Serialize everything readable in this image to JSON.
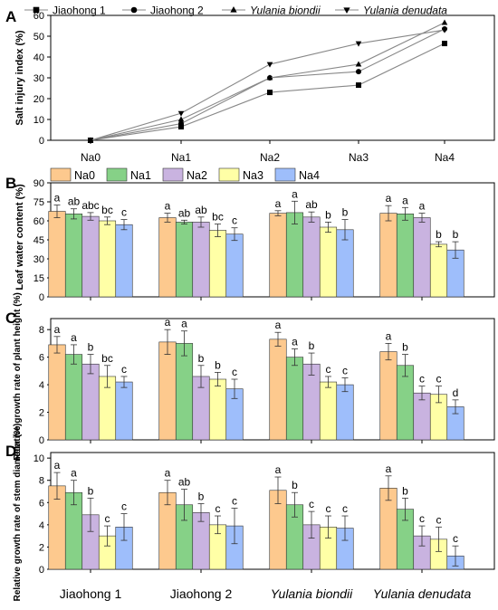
{
  "panel_labels": [
    "A",
    "B",
    "C",
    "D"
  ],
  "species": [
    "Jiaohong 1",
    "Jiaohong 2",
    "Yulania biondii",
    "Yulania denudata"
  ],
  "treatments": [
    "Na0",
    "Na1",
    "Na2",
    "Na3",
    "Na4"
  ],
  "treatment_colors": [
    "#FDC98E",
    "#86D187",
    "#C9B3E0",
    "#FFFFA6",
    "#9EBEFB"
  ],
  "chart_data": [
    {
      "type": "line",
      "panel": "A",
      "ylabel": "Salt injury index (%)",
      "ylim": [
        0,
        60
      ],
      "yticks": [
        0,
        10,
        20,
        30,
        40,
        50,
        60
      ],
      "x": [
        "Na0",
        "Na1",
        "Na2",
        "Na3",
        "Na4"
      ],
      "legend_position": "top",
      "series": [
        {
          "name": "Jiaohong 1",
          "marker": "square",
          "values": [
            0,
            6.5,
            23,
            26.5,
            46.5
          ]
        },
        {
          "name": "Jiaohong 2",
          "marker": "circle",
          "values": [
            0,
            8,
            30,
            33,
            53.5
          ]
        },
        {
          "name": "Yulania biondii",
          "marker": "triangle-up",
          "values": [
            0,
            10,
            30,
            36.5,
            56.5
          ]
        },
        {
          "name": "Yulania denudata",
          "marker": "triangle-down",
          "values": [
            0,
            13,
            36.5,
            46.5,
            53
          ]
        }
      ]
    },
    {
      "type": "bar",
      "panel": "B",
      "ylabel": "Leaf water content (%)",
      "ylim": [
        0,
        90
      ],
      "yticks": [
        0,
        15,
        30,
        45,
        60,
        75,
        90
      ],
      "legend_position": "top",
      "categories": [
        "Jiaohong 1",
        "Jiaohong 2",
        "Yulania biondii",
        "Yulania denudata"
      ],
      "series": [
        {
          "name": "Na0",
          "values": [
            67.5,
            62.5,
            66,
            66
          ],
          "errors": [
            5,
            3.5,
            2,
            6
          ],
          "letters": [
            "a",
            "a",
            "a",
            "a"
          ]
        },
        {
          "name": "Na1",
          "values": [
            65.5,
            59,
            66.5,
            65.5
          ],
          "errors": [
            4,
            1.5,
            9,
            5
          ],
          "letters": [
            "ab",
            "ab",
            "a",
            "a"
          ]
        },
        {
          "name": "Na2",
          "values": [
            63.5,
            59,
            63,
            62.5
          ],
          "errors": [
            3,
            4,
            4,
            3.5
          ],
          "letters": [
            "abc",
            "ab",
            "ab",
            "a"
          ]
        },
        {
          "name": "Na3",
          "values": [
            60,
            52.5,
            55,
            41.5
          ],
          "errors": [
            3,
            5,
            4,
            2
          ],
          "letters": [
            "bc",
            "bc",
            "b",
            "b"
          ]
        },
        {
          "name": "Na4",
          "values": [
            57,
            49.5,
            53,
            37
          ],
          "errors": [
            4,
            5,
            8,
            6.5
          ],
          "letters": [
            "c",
            "c",
            "b",
            "b"
          ]
        }
      ]
    },
    {
      "type": "bar",
      "panel": "C",
      "ylabel": "Relative growth rate of plant height (%)",
      "ylim": [
        0,
        8.8
      ],
      "yticks": [
        0,
        2,
        4,
        6,
        8
      ],
      "categories": [
        "Jiaohong 1",
        "Jiaohong 2",
        "Yulania biondii",
        "Yulania denudata"
      ],
      "series": [
        {
          "name": "Na0",
          "values": [
            6.9,
            7.1,
            7.3,
            6.4
          ],
          "errors": [
            0.6,
            0.9,
            0.5,
            0.6
          ],
          "letters": [
            "a",
            "a",
            "a",
            "a"
          ]
        },
        {
          "name": "Na1",
          "values": [
            6.2,
            7.0,
            6.0,
            5.4
          ],
          "errors": [
            0.7,
            0.9,
            0.6,
            0.8
          ],
          "letters": [
            "a",
            "a",
            "a",
            "b"
          ]
        },
        {
          "name": "Na2",
          "values": [
            5.5,
            4.6,
            5.5,
            3.4
          ],
          "errors": [
            0.7,
            0.8,
            0.8,
            0.5
          ],
          "letters": [
            "b",
            "b",
            "b",
            "c"
          ]
        },
        {
          "name": "Na3",
          "values": [
            4.6,
            4.4,
            4.2,
            3.3
          ],
          "errors": [
            0.8,
            0.5,
            0.4,
            0.6
          ],
          "letters": [
            "bc",
            "b",
            "c",
            "c"
          ]
        },
        {
          "name": "Na4",
          "values": [
            4.2,
            3.7,
            4.0,
            2.4
          ],
          "errors": [
            0.4,
            0.7,
            0.5,
            0.5
          ],
          "letters": [
            "c",
            "c",
            "c",
            "d"
          ]
        }
      ]
    },
    {
      "type": "bar",
      "panel": "D",
      "ylabel": "Relative growth rate of stem diameter (%)",
      "ylim": [
        0,
        10.5
      ],
      "yticks": [
        0,
        2,
        4,
        6,
        8,
        10
      ],
      "categories": [
        "Jiaohong 1",
        "Jiaohong 2",
        "Yulania biondii",
        "Yulania denudata"
      ],
      "series": [
        {
          "name": "Na0",
          "values": [
            7.5,
            6.9,
            7.1,
            7.3
          ],
          "errors": [
            1.2,
            1.1,
            1.2,
            1.1
          ],
          "letters": [
            "a",
            "a",
            "a",
            "a"
          ]
        },
        {
          "name": "Na1",
          "values": [
            6.9,
            5.8,
            5.8,
            5.4
          ],
          "errors": [
            1.1,
            1.4,
            1.1,
            1.0
          ],
          "letters": [
            "a",
            "ab",
            "b",
            "b"
          ]
        },
        {
          "name": "Na2",
          "values": [
            4.9,
            5.1,
            4.0,
            3.0
          ],
          "errors": [
            1.5,
            0.8,
            1.2,
            0.9
          ],
          "letters": [
            "b",
            "b",
            "c",
            "c"
          ]
        },
        {
          "name": "Na3",
          "values": [
            3.0,
            4.0,
            3.8,
            2.7
          ],
          "errors": [
            0.9,
            0.8,
            1.0,
            1.1
          ],
          "letters": [
            "c",
            "c",
            "c",
            "c"
          ]
        },
        {
          "name": "Na4",
          "values": [
            3.8,
            3.9,
            3.7,
            1.2
          ],
          "errors": [
            1.2,
            1.6,
            1.1,
            0.9
          ],
          "letters": [
            "c",
            "c",
            "c",
            "c"
          ]
        }
      ]
    }
  ]
}
